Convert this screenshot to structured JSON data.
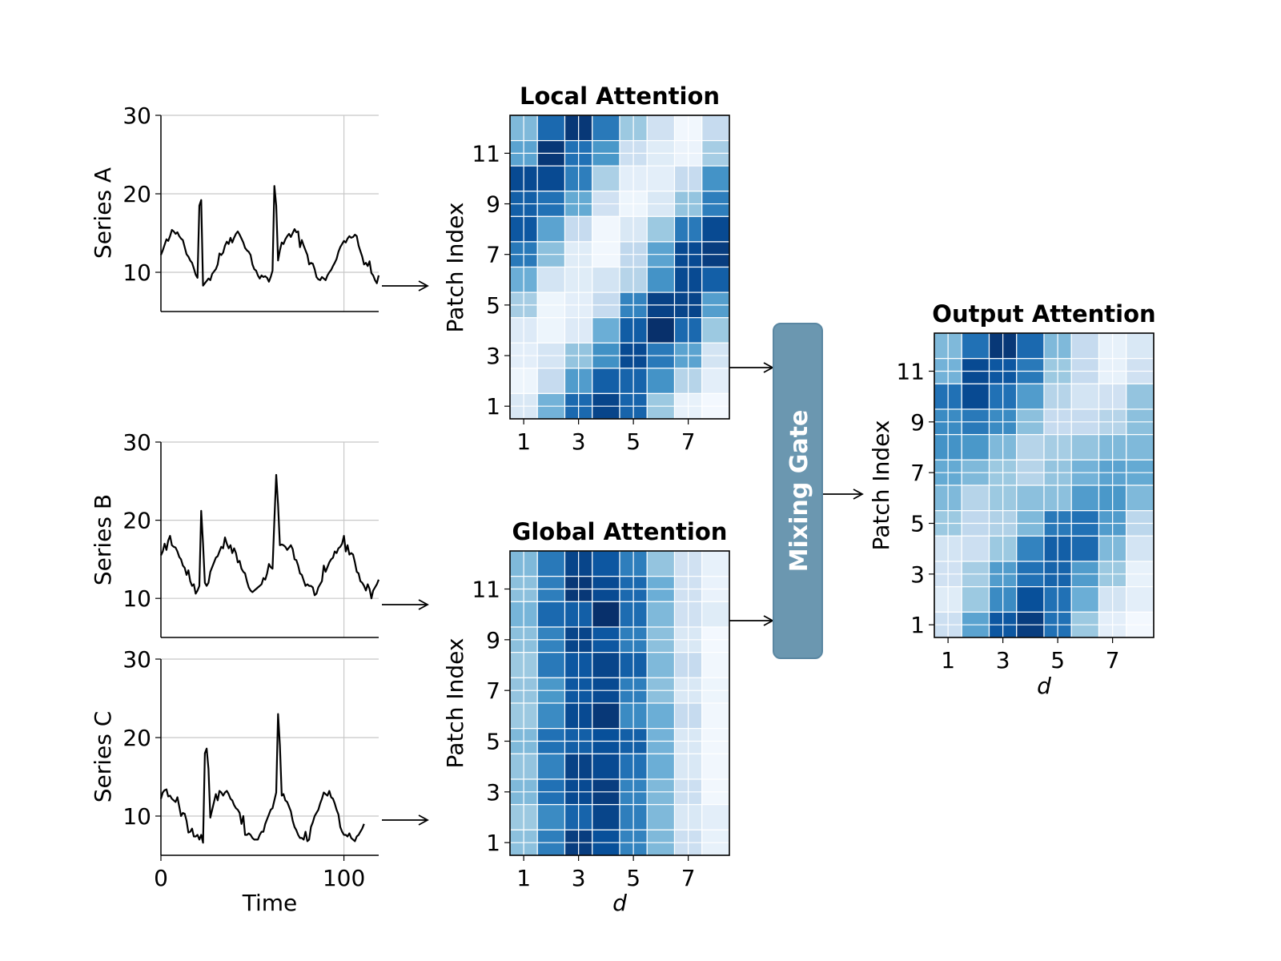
{
  "chart_data": [
    {
      "type": "line",
      "id": "series_a",
      "ylabel": "Series A",
      "xlabel": "",
      "xlim": [
        0,
        119
      ],
      "ylim": [
        5,
        30
      ],
      "yticks": [
        "10",
        "20",
        "30"
      ],
      "ytick_values": [
        10,
        20,
        30
      ],
      "xtick_values": [
        0,
        100
      ],
      "xticks": [],
      "grid": true,
      "color": "#000000",
      "y": [
        12.2,
        12.8,
        13.5,
        14.2,
        14.0,
        14.6,
        15.4,
        15.2,
        14.9,
        15.1,
        14.6,
        14.3,
        14.1,
        13.2,
        12.3,
        12.0,
        11.5,
        11.2,
        10.5,
        9.7,
        9.3,
        18.5,
        19.2,
        8.3,
        8.6,
        8.9,
        9.2,
        9.0,
        9.8,
        10.1,
        10.4,
        11.0,
        12.4,
        12.2,
        12.5,
        13.4,
        13.9,
        13.6,
        14.4,
        13.8,
        14.4,
        14.9,
        15.2,
        14.8,
        14.3,
        13.8,
        13.1,
        12.8,
        12.6,
        12.2,
        11.0,
        10.4,
        10.2,
        9.6,
        9.2,
        9.6,
        9.4,
        9.5,
        9.3,
        8.8,
        9.4,
        10.2,
        21.0,
        18.5,
        11.5,
        12.8,
        13.8,
        13.6,
        14.2,
        14.6,
        14.9,
        14.5,
        15.0,
        15.5,
        15.1,
        15.2,
        13.2,
        14.1,
        13.4,
        12.8,
        12.2,
        11.0,
        11.2,
        11.1,
        10.4,
        9.4,
        9.1,
        9.0,
        9.4,
        9.2,
        9.0,
        9.6,
        10.0,
        10.3,
        10.8,
        11.2,
        11.7,
        12.6,
        13.2,
        13.6,
        14.0,
        13.8,
        14.3,
        14.6,
        14.4,
        14.5,
        14.8,
        14.6,
        13.4,
        12.7,
        12.0,
        11.0,
        11.2,
        10.8,
        11.4,
        9.9,
        9.6,
        9.0,
        8.6,
        9.6
      ]
    },
    {
      "type": "line",
      "id": "series_b",
      "ylabel": "Series B",
      "xlabel": "",
      "xlim": [
        0,
        119
      ],
      "ylim": [
        5,
        30
      ],
      "yticks": [
        "10",
        "20",
        "30"
      ],
      "ytick_values": [
        10,
        20,
        30
      ],
      "xtick_values": [
        0,
        100
      ],
      "xticks": [],
      "grid": true,
      "color": "#000000",
      "y": [
        15.5,
        16.0,
        17.0,
        16.2,
        17.4,
        18.0,
        16.8,
        16.6,
        16.5,
        16.0,
        15.3,
        15.0,
        14.2,
        13.9,
        13.0,
        13.6,
        12.2,
        11.6,
        11.8,
        10.6,
        11.0,
        11.6,
        21.2,
        17.0,
        12.0,
        11.6,
        12.0,
        13.4,
        14.0,
        14.6,
        15.2,
        15.4,
        16.0,
        16.6,
        16.4,
        17.8,
        17.0,
        16.4,
        16.8,
        15.8,
        16.4,
        15.8,
        14.6,
        14.8,
        13.8,
        13.4,
        13.2,
        12.2,
        11.4,
        11.0,
        10.8,
        11.0,
        11.2,
        11.4,
        11.6,
        11.8,
        12.6,
        12.4,
        13.2,
        14.4,
        14.0,
        13.8,
        20.0,
        25.8,
        22.0,
        16.8,
        16.9,
        16.8,
        16.6,
        16.2,
        16.5,
        16.8,
        16.3,
        15.0,
        14.9,
        14.2,
        13.2,
        13.0,
        12.3,
        11.6,
        11.8,
        11.6,
        11.6,
        11.4,
        10.4,
        10.6,
        11.4,
        11.8,
        12.2,
        14.2,
        13.4,
        14.0,
        14.6,
        15.0,
        15.2,
        16.0,
        15.8,
        16.4,
        16.6,
        17.0,
        18.0,
        16.0,
        16.8,
        15.6,
        15.8,
        15.6,
        14.6,
        13.4,
        13.2,
        12.2,
        12.0,
        11.6,
        11.0,
        11.8,
        11.2,
        10.0,
        11.0,
        11.4,
        11.8,
        12.4
      ]
    },
    {
      "type": "line",
      "id": "series_c",
      "ylabel": "Series C",
      "xlabel": "Time",
      "xlim": [
        0,
        119
      ],
      "ylim": [
        5,
        30
      ],
      "yticks": [
        "10",
        "20",
        "30"
      ],
      "ytick_values": [
        10,
        20,
        30
      ],
      "xtick_values": [
        0,
        100
      ],
      "xticks": [
        "0",
        "100"
      ],
      "grid": true,
      "color": "#000000",
      "y": [
        12.2,
        13.0,
        13.3,
        13.4,
        12.5,
        12.6,
        12.2,
        12.0,
        11.8,
        12.4,
        11.2,
        10.0,
        10.4,
        10.3,
        9.4,
        7.9,
        8.0,
        8.4,
        7.4,
        7.4,
        7.6,
        7.0,
        7.6,
        6.6,
        18.0,
        18.6,
        16.0,
        9.8,
        10.8,
        11.8,
        12.8,
        12.0,
        13.2,
        13.0,
        12.6,
        13.0,
        13.2,
        12.8,
        12.2,
        12.0,
        11.4,
        11.0,
        10.8,
        10.4,
        9.0,
        10.0,
        7.6,
        7.6,
        7.8,
        7.6,
        7.2,
        7.0,
        7.0,
        7.0,
        7.6,
        8.0,
        8.0,
        9.0,
        9.6,
        10.2,
        10.8,
        11.0,
        12.0,
        13.0,
        23.0,
        19.0,
        12.6,
        12.8,
        12.0,
        11.8,
        11.2,
        10.6,
        9.4,
        8.6,
        8.2,
        7.6,
        7.2,
        7.2,
        7.0,
        8.0,
        6.8,
        7.0,
        8.6,
        9.2,
        10.0,
        10.4,
        10.8,
        11.6,
        12.2,
        13.0,
        12.8,
        12.6,
        13.2,
        12.4,
        12.2,
        11.6,
        10.8,
        10.2,
        8.6,
        8.0,
        7.6,
        7.6,
        7.4,
        7.8,
        7.2,
        7.0,
        6.8,
        7.4,
        7.6,
        8.0,
        8.4,
        9.0
      ]
    },
    {
      "type": "heatmap",
      "id": "local",
      "title": "Local Attention",
      "xlabel": "",
      "ylabel": "Patch Index",
      "xticks": [
        "1",
        "3",
        "5",
        "7"
      ],
      "yticks": [
        "1",
        "3",
        "5",
        "7",
        "9",
        "11"
      ],
      "colormap": "Blues",
      "rows_top_to_bottom": [
        12,
        11,
        10,
        9,
        8,
        7,
        6,
        5,
        4,
        3,
        2,
        1
      ],
      "columns": [
        1,
        2,
        3,
        4,
        5,
        6,
        7,
        8
      ],
      "values": [
        [
          0.45,
          0.78,
          0.97,
          0.72,
          0.38,
          0.2,
          0.03,
          0.25
        ],
        [
          0.55,
          0.97,
          0.75,
          0.6,
          0.22,
          0.12,
          0.06,
          0.35
        ],
        [
          0.9,
          0.9,
          0.7,
          0.33,
          0.1,
          0.1,
          0.25,
          0.62
        ],
        [
          0.82,
          0.75,
          0.52,
          0.2,
          0.05,
          0.15,
          0.4,
          0.7
        ],
        [
          0.85,
          0.55,
          0.25,
          0.03,
          0.15,
          0.38,
          0.72,
          0.9
        ],
        [
          0.72,
          0.42,
          0.12,
          0.03,
          0.27,
          0.55,
          0.9,
          0.95
        ],
        [
          0.5,
          0.18,
          0.12,
          0.18,
          0.3,
          0.62,
          0.9,
          0.82
        ],
        [
          0.35,
          0.05,
          0.1,
          0.25,
          0.68,
          0.93,
          0.92,
          0.57
        ],
        [
          0.13,
          0.05,
          0.13,
          0.5,
          0.83,
          1.0,
          0.78,
          0.38
        ],
        [
          0.1,
          0.17,
          0.4,
          0.63,
          0.9,
          0.72,
          0.55,
          0.18
        ],
        [
          0.05,
          0.25,
          0.58,
          0.82,
          0.8,
          0.62,
          0.3,
          0.1
        ],
        [
          0.15,
          0.48,
          0.78,
          0.92,
          0.8,
          0.38,
          0.08,
          0.02
        ]
      ]
    },
    {
      "type": "heatmap",
      "id": "global",
      "title": "Global Attention",
      "xlabel": "d",
      "ylabel": "Patch Index",
      "xticks": [
        "1",
        "3",
        "5",
        "7"
      ],
      "yticks": [
        "1",
        "3",
        "5",
        "7",
        "9",
        "11"
      ],
      "colormap": "Blues",
      "rows_top_to_bottom": [
        12,
        11,
        10,
        9,
        8,
        7,
        6,
        5,
        4,
        3,
        2,
        1
      ],
      "columns": [
        1,
        2,
        3,
        4,
        5,
        6,
        7,
        8
      ],
      "values": [
        [
          0.45,
          0.72,
          0.92,
          0.85,
          0.7,
          0.4,
          0.2,
          0.08
        ],
        [
          0.42,
          0.7,
          0.97,
          0.9,
          0.78,
          0.5,
          0.2,
          0.07
        ],
        [
          0.47,
          0.78,
          0.82,
          1.0,
          0.77,
          0.45,
          0.2,
          0.12
        ],
        [
          0.42,
          0.68,
          0.92,
          0.85,
          0.7,
          0.42,
          0.15,
          0.02
        ],
        [
          0.38,
          0.72,
          0.85,
          0.92,
          0.82,
          0.45,
          0.25,
          0.03
        ],
        [
          0.4,
          0.6,
          0.85,
          0.9,
          0.7,
          0.42,
          0.15,
          0.05
        ],
        [
          0.38,
          0.65,
          0.9,
          0.97,
          0.65,
          0.5,
          0.25,
          0.03
        ],
        [
          0.45,
          0.75,
          0.82,
          0.88,
          0.82,
          0.48,
          0.15,
          0.03
        ],
        [
          0.4,
          0.68,
          0.93,
          0.9,
          0.75,
          0.5,
          0.15,
          0.03
        ],
        [
          0.45,
          0.75,
          0.9,
          0.95,
          0.68,
          0.45,
          0.22,
          0.03
        ],
        [
          0.38,
          0.65,
          0.8,
          0.92,
          0.7,
          0.45,
          0.15,
          0.1
        ],
        [
          0.42,
          0.7,
          0.95,
          0.88,
          0.68,
          0.45,
          0.22,
          0.08
        ]
      ]
    },
    {
      "type": "heatmap",
      "id": "output",
      "title": "Output Attention",
      "xlabel": "d",
      "ylabel": "Patch Index",
      "xticks": [
        "1",
        "3",
        "5",
        "7"
      ],
      "yticks": [
        "1",
        "3",
        "5",
        "7",
        "9",
        "11"
      ],
      "colormap": "Blues",
      "rows_top_to_bottom": [
        12,
        11,
        10,
        9,
        8,
        7,
        6,
        5,
        4,
        3,
        2,
        1
      ],
      "columns": [
        1,
        2,
        3,
        4,
        5,
        6,
        7,
        8
      ],
      "values": [
        [
          0.45,
          0.75,
          0.97,
          0.78,
          0.45,
          0.25,
          0.08,
          0.15
        ],
        [
          0.48,
          0.9,
          0.85,
          0.72,
          0.38,
          0.25,
          0.08,
          0.2
        ],
        [
          0.75,
          0.9,
          0.75,
          0.58,
          0.3,
          0.18,
          0.2,
          0.4
        ],
        [
          0.65,
          0.72,
          0.65,
          0.42,
          0.25,
          0.25,
          0.3,
          0.42
        ],
        [
          0.62,
          0.6,
          0.45,
          0.3,
          0.35,
          0.4,
          0.45,
          0.45
        ],
        [
          0.52,
          0.45,
          0.38,
          0.3,
          0.4,
          0.48,
          0.55,
          0.52
        ],
        [
          0.45,
          0.3,
          0.38,
          0.42,
          0.42,
          0.58,
          0.6,
          0.45
        ],
        [
          0.38,
          0.27,
          0.32,
          0.45,
          0.72,
          0.75,
          0.58,
          0.28
        ],
        [
          0.18,
          0.22,
          0.38,
          0.68,
          0.82,
          0.78,
          0.45,
          0.18
        ],
        [
          0.2,
          0.35,
          0.58,
          0.75,
          0.8,
          0.58,
          0.38,
          0.08
        ],
        [
          0.12,
          0.38,
          0.65,
          0.88,
          0.75,
          0.5,
          0.18,
          0.1
        ],
        [
          0.22,
          0.55,
          0.85,
          0.95,
          0.75,
          0.38,
          0.1,
          0.02
        ]
      ]
    }
  ],
  "mixing_gate": {
    "label": "Mixing Gate",
    "fill": "#6b97b0",
    "border": "#5a87a2"
  },
  "colors": {
    "grid": "#c8c8c8",
    "blues_low": "#f7fbff",
    "blues_high": "#08306b"
  }
}
